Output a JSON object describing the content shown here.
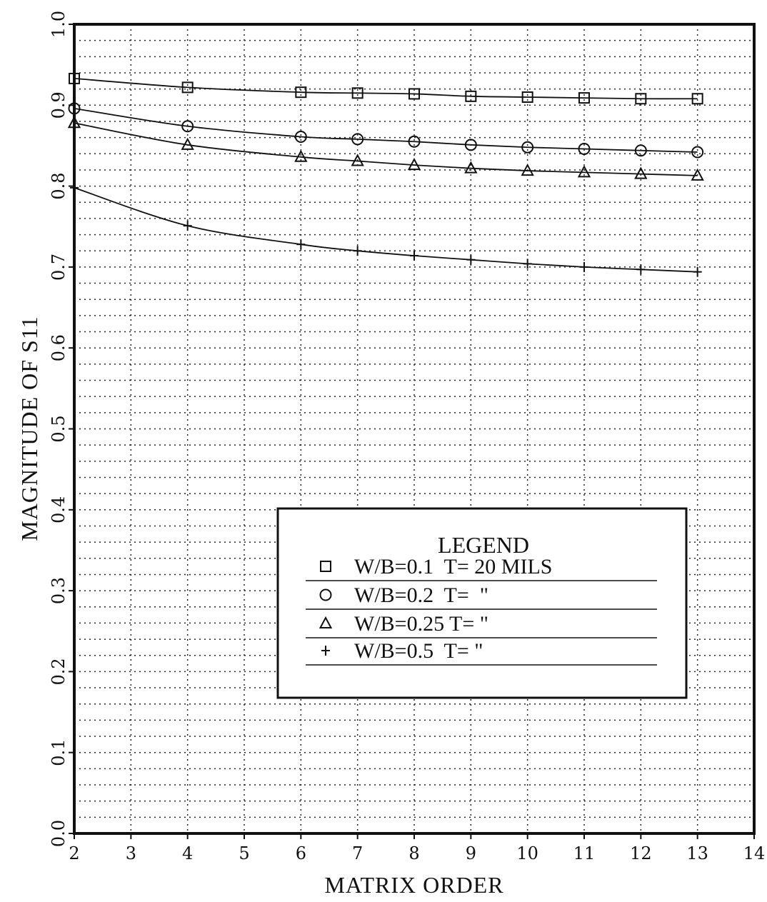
{
  "chart_data": {
    "type": "line",
    "xlabel": "MATRIX ORDER",
    "ylabel": "MAGNITUDE OF S11",
    "xlim": [
      2,
      14
    ],
    "ylim": [
      0.0,
      1.0
    ],
    "x_ticks": [
      "2",
      "3",
      "4",
      "5",
      "6",
      "7",
      "8",
      "9",
      "10",
      "11",
      "12",
      "13",
      "14"
    ],
    "y_ticks": [
      "0.0",
      "0.1",
      "0.2",
      "0.3",
      "0.4",
      "0.5",
      "0.6",
      "0.7",
      "0.8",
      "0.9",
      "1.0"
    ],
    "grid": true,
    "legend": {
      "title": "LEGEND",
      "placement": "lower-right",
      "entries": [
        "W/B=0.1  T= 20 MILS",
        "W/B=0.2  T=  \"",
        "W/B=0.25 T= \"",
        "W/B=0.5  T= \""
      ]
    },
    "series": [
      {
        "name": "W/B=0.1  T= 20 MILS",
        "marker": "square",
        "x": [
          2,
          4,
          6,
          7,
          8,
          9,
          10,
          11,
          12,
          13
        ],
        "y": [
          0.933,
          0.922,
          0.916,
          0.915,
          0.914,
          0.911,
          0.91,
          0.909,
          0.908,
          0.908
        ]
      },
      {
        "name": "W/B=0.2  T=  \"",
        "marker": "circle",
        "x": [
          2,
          4,
          6,
          7,
          8,
          9,
          10,
          11,
          12,
          13
        ],
        "y": [
          0.896,
          0.874,
          0.861,
          0.858,
          0.855,
          0.851,
          0.848,
          0.846,
          0.844,
          0.842
        ]
      },
      {
        "name": "W/B=0.25 T= \"",
        "marker": "triangle",
        "x": [
          2,
          4,
          6,
          7,
          8,
          9,
          10,
          11,
          12,
          13
        ],
        "y": [
          0.878,
          0.851,
          0.836,
          0.831,
          0.826,
          0.822,
          0.819,
          0.817,
          0.815,
          0.813
        ]
      },
      {
        "name": "W/B=0.5  T= \"",
        "marker": "plus",
        "x": [
          2,
          4,
          6,
          7,
          8,
          9,
          10,
          11,
          12,
          13
        ],
        "y": [
          0.798,
          0.751,
          0.728,
          0.72,
          0.714,
          0.709,
          0.704,
          0.7,
          0.697,
          0.694
        ]
      }
    ]
  }
}
